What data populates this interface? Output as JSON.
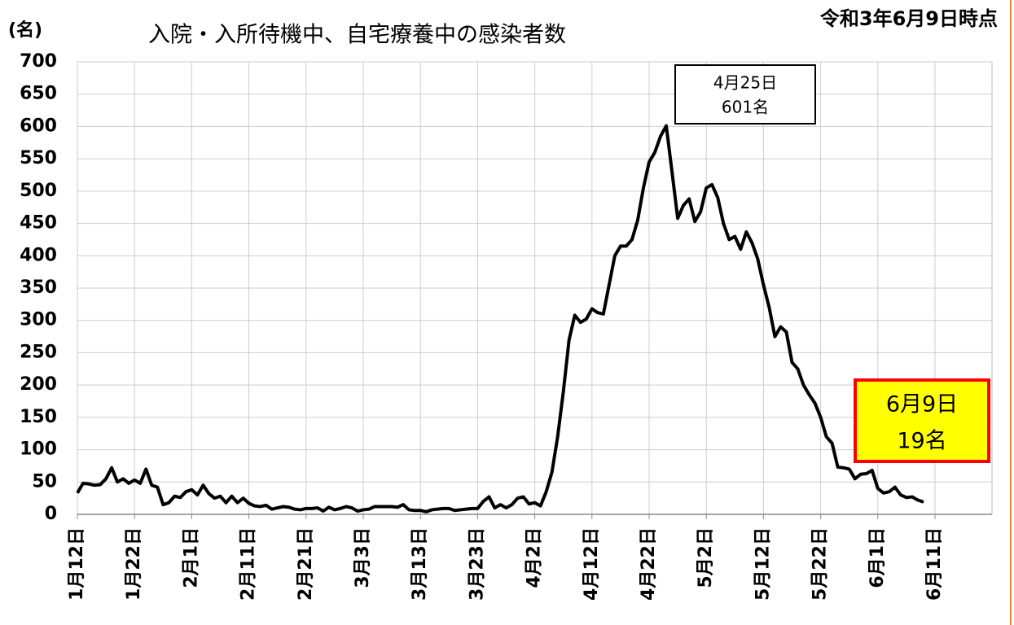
{
  "chart_data": {
    "type": "line",
    "title": "入院・入所待機中、自宅療養中の感染者数",
    "y_unit": "(名)",
    "as_of": "令和3年6月9日時点",
    "annotations": [
      {
        "lines": [
          "4月25日",
          "601名"
        ]
      },
      {
        "lines": [
          "6月9日",
          "19名"
        ]
      }
    ],
    "categories": [
      "1月12日",
      null,
      null,
      null,
      null,
      null,
      null,
      null,
      null,
      null,
      "1月22日",
      null,
      null,
      null,
      null,
      null,
      null,
      null,
      null,
      null,
      "2月1日",
      null,
      null,
      null,
      null,
      null,
      null,
      null,
      null,
      null,
      "2月11日",
      null,
      null,
      null,
      null,
      null,
      null,
      null,
      null,
      null,
      "2月21日",
      null,
      null,
      null,
      null,
      null,
      null,
      null,
      null,
      null,
      "3月3日",
      null,
      null,
      null,
      null,
      null,
      null,
      null,
      null,
      null,
      "3月13日",
      null,
      null,
      null,
      null,
      null,
      null,
      null,
      null,
      null,
      "3月23日",
      null,
      null,
      null,
      null,
      null,
      null,
      null,
      null,
      null,
      "4月2日",
      null,
      null,
      null,
      null,
      null,
      null,
      null,
      null,
      null,
      "4月12日",
      null,
      null,
      null,
      null,
      null,
      null,
      null,
      null,
      null,
      "4月22日",
      null,
      null,
      null,
      null,
      null,
      null,
      null,
      null,
      null,
      "5月2日",
      null,
      null,
      null,
      null,
      null,
      null,
      null,
      null,
      null,
      "5月12日",
      null,
      null,
      null,
      null,
      null,
      null,
      null,
      null,
      null,
      "5月22日",
      null,
      null,
      null,
      null,
      null,
      null,
      null,
      null,
      null,
      "6月1日",
      null,
      null,
      null,
      null,
      null,
      null,
      null,
      null,
      null,
      "6月11日"
    ],
    "series": [
      {
        "name": "感染者数",
        "color": "#000000",
        "values": [
          33,
          48,
          47,
          45,
          46,
          55,
          72,
          50,
          55,
          48,
          53,
          48,
          70,
          45,
          42,
          15,
          18,
          28,
          26,
          35,
          38,
          30,
          45,
          32,
          25,
          28,
          18,
          28,
          18,
          25,
          17,
          13,
          12,
          14,
          8,
          10,
          12,
          11,
          8,
          7,
          9,
          9,
          10,
          5,
          11,
          7,
          9,
          12,
          10,
          5,
          7,
          8,
          12,
          12,
          12,
          12,
          11,
          15,
          7,
          6,
          6,
          4,
          7,
          8,
          9,
          9,
          6,
          7,
          8,
          9,
          9,
          20,
          27,
          10,
          15,
          10,
          15,
          25,
          27,
          16,
          18,
          13,
          35,
          65,
          120,
          190,
          270,
          308,
          297,
          302,
          318,
          312,
          310,
          355,
          400,
          415,
          415,
          425,
          455,
          505,
          545,
          560,
          585,
          601,
          530,
          458,
          478,
          488,
          453,
          468,
          505,
          510,
          490,
          450,
          425,
          430,
          410,
          437,
          420,
          395,
          355,
          320,
          275,
          290,
          282,
          235,
          225,
          200,
          185,
          172,
          150,
          120,
          110,
          73,
          72,
          70,
          55,
          62,
          63,
          68,
          40,
          33,
          35,
          42,
          30,
          26,
          27,
          22,
          19,
          null,
          null
        ]
      }
    ],
    "ylim": [
      0,
      700
    ],
    "yticks": [
      0,
      50,
      100,
      150,
      200,
      250,
      300,
      350,
      400,
      450,
      500,
      550,
      600,
      650,
      700
    ],
    "grid": true
  }
}
